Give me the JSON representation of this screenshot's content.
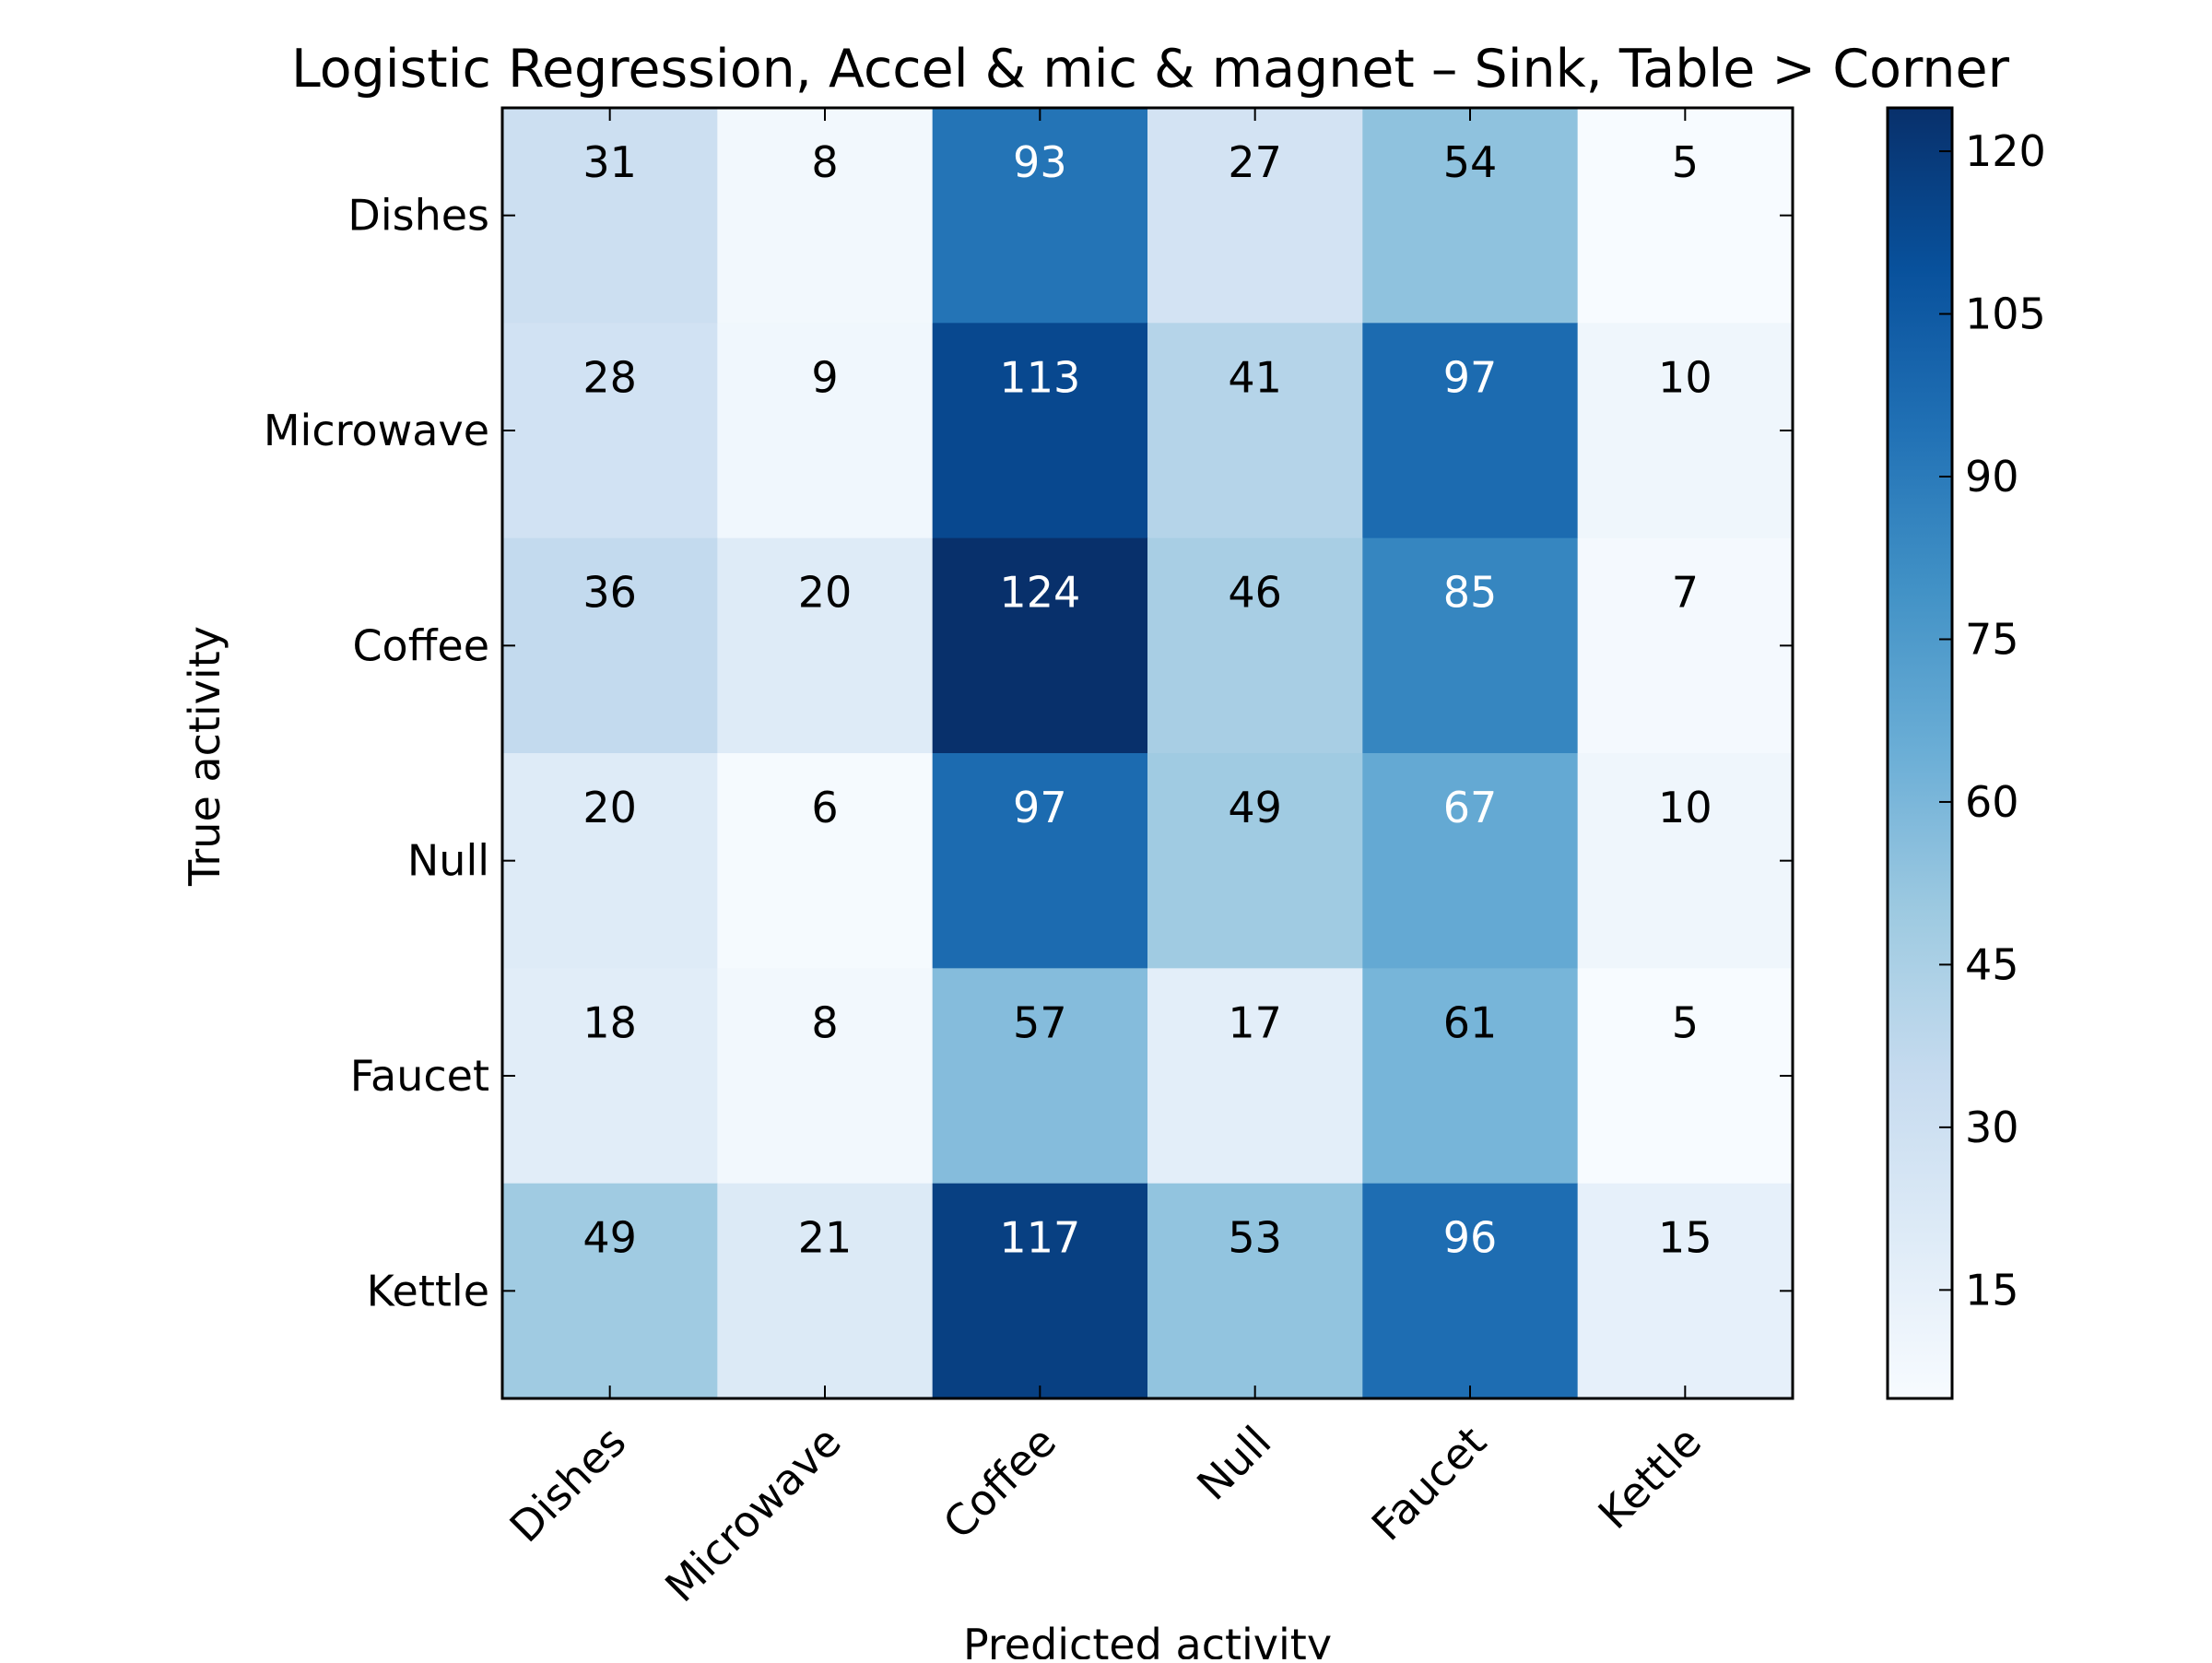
{
  "chart_data": {
    "type": "heatmap",
    "title": "Logistic Regression, Accel & mic & magnet – Sink, Table > Corner",
    "xlabel": "Predicted activity",
    "ylabel": "True activity",
    "x_categories": [
      "Dishes",
      "Microwave",
      "Coffee",
      "Null",
      "Faucet",
      "Kettle"
    ],
    "y_categories": [
      "Dishes",
      "Microwave",
      "Coffee",
      "Null",
      "Faucet",
      "Kettle"
    ],
    "values": [
      [
        31,
        8,
        93,
        27,
        54,
        5
      ],
      [
        28,
        9,
        113,
        41,
        97,
        10
      ],
      [
        36,
        20,
        124,
        46,
        85,
        7
      ],
      [
        20,
        6,
        97,
        49,
        67,
        10
      ],
      [
        18,
        8,
        57,
        17,
        61,
        5
      ],
      [
        49,
        21,
        117,
        53,
        96,
        15
      ]
    ],
    "colormap": "Blues",
    "color_range": [
      5,
      124
    ],
    "colorbar_ticks": [
      15,
      30,
      45,
      60,
      75,
      90,
      105,
      120
    ],
    "text_color_threshold": 62,
    "annotation_colors": {
      "dark_cell": "#ffffff",
      "light_cell": "#000000"
    },
    "grid": false
  }
}
